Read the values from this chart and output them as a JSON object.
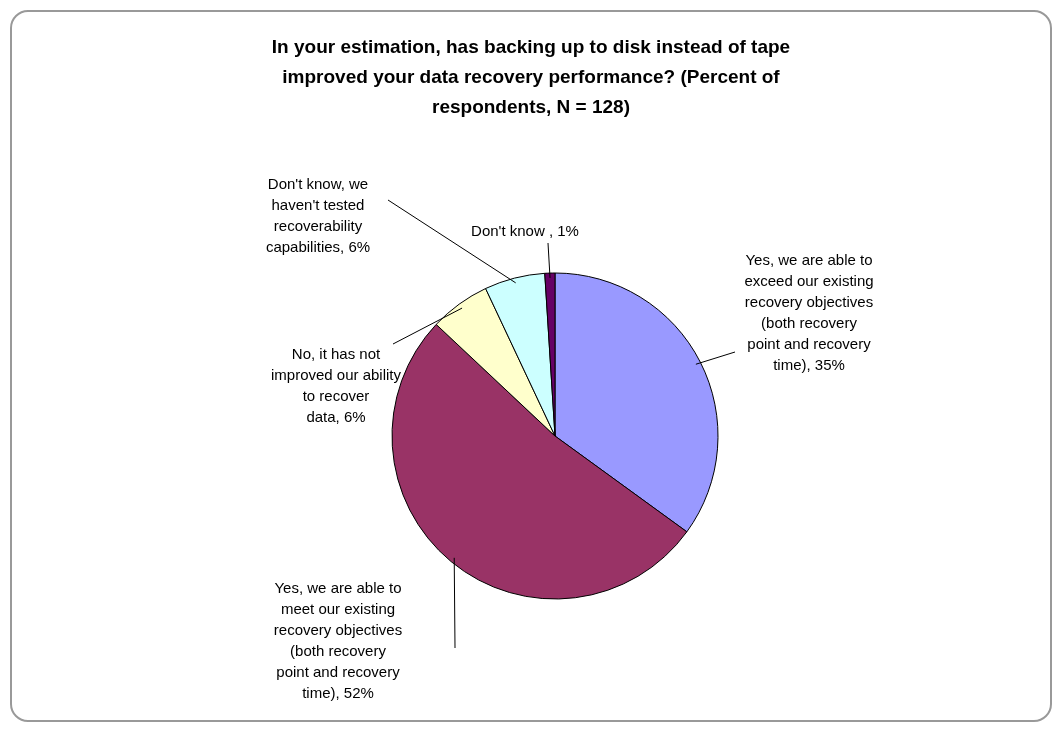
{
  "chart_data": {
    "type": "pie",
    "title": "In your estimation, has backing up to disk instead of tape improved your data recovery performance? (Percent of respondents, N = 128)",
    "categories": [
      "Yes, we are able to exceed our existing recovery objectives (both recovery point and recovery time)",
      "Yes, we are able to meet our existing recovery objectives (both recovery point and recovery time)",
      "No, it has not improved our ability to recover data",
      "Don't know, we haven't tested recoverability capabilities",
      "Don't know "
    ],
    "values": [
      35,
      52,
      6,
      6,
      1
    ],
    "value_labels": [
      "35%",
      "52%",
      "6%",
      "6%",
      "1%"
    ],
    "colors": [
      "#9999ff",
      "#993366",
      "#ffffcc",
      "#ccffff",
      "#660066"
    ],
    "legend": false
  }
}
